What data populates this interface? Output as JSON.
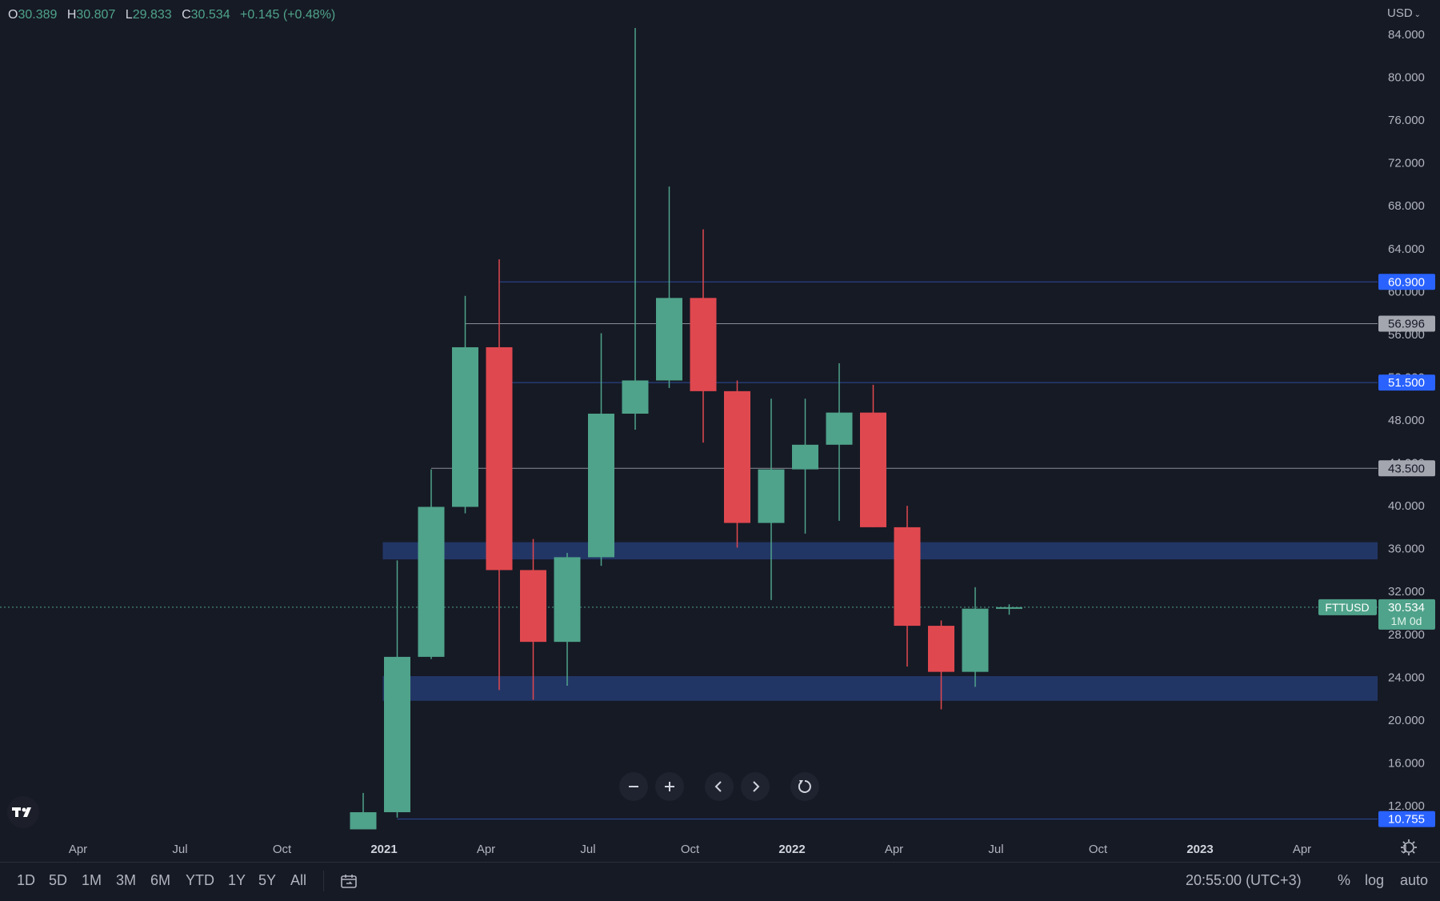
{
  "ohlc": {
    "open_label": "O",
    "open": "30.389",
    "high_label": "H",
    "high": "30.807",
    "low_label": "L",
    "low": "29.833",
    "close_label": "C",
    "close": "30.534",
    "change": "+0.145 (+0.48%)"
  },
  "currency": "USD",
  "symbol_tag": "FTTUSD",
  "last_price": "30.534",
  "countdown": "1M 0d",
  "time_readout": "20:55:00 (UTC+3)",
  "periods": [
    "1D",
    "5D",
    "1M",
    "3M",
    "6M",
    "YTD",
    "1Y",
    "5Y",
    "All"
  ],
  "scale_toggles": [
    "%",
    "log",
    "auto"
  ],
  "colors": {
    "background": "#161a25",
    "up": "#4fa38a",
    "down": "#e0484f",
    "zone": "#233a6e",
    "blue_line": "#2d4a9a",
    "gray_line": "#8a8d96",
    "blue_label": "#2962ff",
    "gray_label": "#a3a6af"
  },
  "icons": {
    "zoom_out": "minus-icon",
    "zoom_in": "plus-icon",
    "scroll_left": "chevron-left-icon",
    "scroll_right": "chevron-right-icon",
    "reset": "reset-icon",
    "logo": "tradingview-logo-icon",
    "settings": "gear-icon",
    "compare": "calendar-range-icon"
  },
  "chart_data": {
    "type": "candlestick",
    "interval": "1M",
    "ylim": [
      8.5,
      87
    ],
    "y_ticks": [
      "12.000",
      "16.000",
      "20.000",
      "24.000",
      "28.000",
      "32.000",
      "36.000",
      "40.000",
      "44.000",
      "48.000",
      "52.000",
      "56.000",
      "60.000",
      "64.000",
      "68.000",
      "72.000",
      "76.000",
      "80.000",
      "84.000"
    ],
    "x_ticks": [
      "Apr",
      "Jul",
      "Oct",
      "2021",
      "Apr",
      "Jul",
      "Oct",
      "2022",
      "Apr",
      "Jul",
      "Oct",
      "2023",
      "Apr",
      "J"
    ],
    "bold_x_ticks": [
      "2021",
      "2022",
      "2023"
    ],
    "candles": [
      {
        "date": "2020-12",
        "open": 9.8,
        "high": 13.2,
        "low": 9.8,
        "close": 11.4
      },
      {
        "date": "2021-01",
        "open": 11.4,
        "high": 34.9,
        "low": 10.9,
        "close": 25.9
      },
      {
        "date": "2021-02",
        "open": 25.9,
        "high": 43.4,
        "low": 25.7,
        "close": 39.9
      },
      {
        "date": "2021-03",
        "open": 39.9,
        "high": 59.6,
        "low": 39.3,
        "close": 54.8
      },
      {
        "date": "2021-04",
        "open": 54.8,
        "high": 63.0,
        "low": 22.8,
        "close": 34.0
      },
      {
        "date": "2021-05",
        "open": 34.0,
        "high": 36.9,
        "low": 21.9,
        "close": 27.3
      },
      {
        "date": "2021-06",
        "open": 27.3,
        "high": 35.6,
        "low": 23.2,
        "close": 35.2
      },
      {
        "date": "2021-07",
        "open": 35.2,
        "high": 56.1,
        "low": 34.4,
        "close": 48.6
      },
      {
        "date": "2021-08",
        "open": 48.6,
        "high": 84.6,
        "low": 47.1,
        "close": 51.7
      },
      {
        "date": "2021-09",
        "open": 51.7,
        "high": 69.8,
        "low": 51.0,
        "close": 59.4
      },
      {
        "date": "2021-10",
        "open": 59.4,
        "high": 65.8,
        "low": 45.9,
        "close": 50.7
      },
      {
        "date": "2021-11",
        "open": 50.7,
        "high": 51.7,
        "low": 36.1,
        "close": 38.4
      },
      {
        "date": "2021-12",
        "open": 38.4,
        "high": 50.0,
        "low": 31.2,
        "close": 43.4
      },
      {
        "date": "2022-01",
        "open": 43.4,
        "high": 50.0,
        "low": 37.4,
        "close": 45.7
      },
      {
        "date": "2022-02",
        "open": 45.7,
        "high": 53.3,
        "low": 38.6,
        "close": 48.7
      },
      {
        "date": "2022-03",
        "open": 48.7,
        "high": 51.3,
        "low": 38.0,
        "close": 38.0
      },
      {
        "date": "2022-04",
        "open": 38.0,
        "high": 40.0,
        "low": 25.0,
        "close": 28.8
      },
      {
        "date": "2022-05",
        "open": 28.8,
        "high": 29.3,
        "low": 21.0,
        "close": 24.5
      },
      {
        "date": "2022-06",
        "open": 24.5,
        "high": 32.4,
        "low": 23.1,
        "close": 30.4
      },
      {
        "date": "2022-07",
        "open": 30.389,
        "high": 30.807,
        "low": 29.833,
        "close": 30.534
      }
    ],
    "zones": [
      {
        "from_date": "2021-01",
        "low": 35.0,
        "high": 36.6
      },
      {
        "from_date": "2021-01",
        "low": 21.8,
        "high": 24.1
      }
    ],
    "levels": [
      {
        "price": 60.9,
        "label": "60.900",
        "style": "blue",
        "from_date": "2021-04"
      },
      {
        "price": 56.996,
        "label": "56.996",
        "style": "gray",
        "from_date": "2021-03"
      },
      {
        "price": 51.5,
        "label": "51.500",
        "style": "blue",
        "from_date": "2021-04"
      },
      {
        "price": 43.5,
        "label": "43.500",
        "style": "gray",
        "from_date": "2021-02"
      },
      {
        "price": 10.755,
        "label": "10.755",
        "style": "blue",
        "from_date": "2021-01"
      }
    ]
  }
}
